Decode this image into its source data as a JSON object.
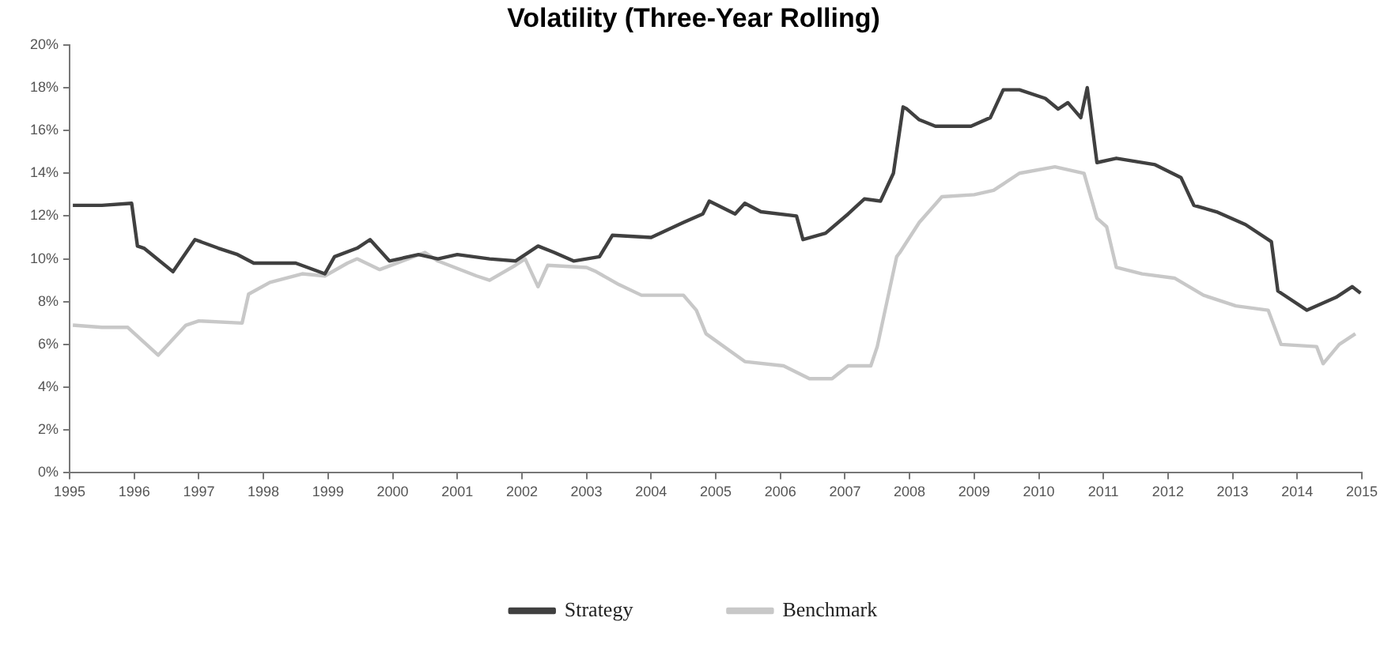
{
  "chart_data": {
    "type": "line",
    "title": "Volatility (Three-Year Rolling)",
    "xlim": [
      1995,
      2015
    ],
    "xticks": [
      1995,
      1996,
      1997,
      1998,
      1999,
      2000,
      2001,
      2002,
      2003,
      2004,
      2005,
      2006,
      2007,
      2008,
      2009,
      2010,
      2011,
      2012,
      2013,
      2014,
      2015
    ],
    "ylim": [
      0,
      20
    ],
    "yticks": [
      {
        "value": 0,
        "label": "0%"
      },
      {
        "value": 2,
        "label": "2%"
      },
      {
        "value": 4,
        "label": "4%"
      },
      {
        "value": 6,
        "label": "6%"
      },
      {
        "value": 8,
        "label": "8%"
      },
      {
        "value": 10,
        "label": "10%"
      },
      {
        "value": 12,
        "label": "12%"
      },
      {
        "value": 14,
        "label": "14%"
      },
      {
        "value": 16,
        "label": "16%"
      },
      {
        "value": 18,
        "label": "18%"
      },
      {
        "value": 20,
        "label": "20%"
      }
    ],
    "grid": false,
    "legend": "bottom",
    "marker": "none",
    "line_style": "solid",
    "series": [
      {
        "name": "Strategy",
        "color": "#404040",
        "x": [
          1995.05,
          1995.5,
          1995.96,
          1996.05,
          1996.15,
          1996.6,
          1996.94,
          1997.3,
          1997.6,
          1997.85,
          1998.5,
          1998.95,
          1999.1,
          1999.45,
          1999.65,
          1999.95,
          2000.4,
          2000.7,
          2001.0,
          2001.5,
          2001.9,
          2002.25,
          2002.5,
          2002.8,
          2003.2,
          2003.4,
          2004.0,
          2004.5,
          2004.8,
          2004.9,
          2005.3,
          2005.45,
          2005.7,
          2006.25,
          2006.35,
          2006.7,
          2007.05,
          2007.3,
          2007.55,
          2007.75,
          2007.9,
          2007.96,
          2008.15,
          2008.4,
          2008.95,
          2009.25,
          2009.45,
          2009.7,
          2010.1,
          2010.3,
          2010.45,
          2010.65,
          2010.75,
          2010.9,
          2011.2,
          2011.8,
          2012.2,
          2012.4,
          2012.75,
          2013.2,
          2013.6,
          2013.7,
          2014.15,
          2014.6,
          2014.85,
          2014.98
        ],
        "values": [
          12.5,
          12.5,
          12.6,
          10.6,
          10.5,
          9.4,
          10.9,
          10.5,
          10.2,
          9.8,
          9.8,
          9.3,
          10.1,
          10.5,
          10.9,
          9.9,
          10.2,
          10.0,
          10.2,
          10.0,
          9.9,
          10.6,
          10.3,
          9.9,
          10.1,
          11.1,
          11.0,
          11.7,
          12.1,
          12.7,
          12.1,
          12.6,
          12.2,
          12.0,
          10.9,
          11.2,
          12.1,
          12.8,
          12.7,
          14.0,
          17.1,
          17.0,
          16.5,
          16.2,
          16.2,
          16.6,
          17.9,
          17.9,
          17.5,
          17.0,
          17.3,
          16.6,
          18.0,
          14.5,
          14.7,
          14.4,
          13.8,
          12.5,
          12.2,
          11.6,
          10.8,
          8.5,
          7.6,
          8.2,
          8.7,
          8.4
        ]
      },
      {
        "name": "Benchmark",
        "color": "#c8c8c8",
        "x": [
          1995.05,
          1995.5,
          1995.9,
          1996.37,
          1996.8,
          1997.0,
          1997.67,
          1997.77,
          1998.1,
          1998.6,
          1998.95,
          1999.3,
          1999.45,
          1999.8,
          2000.5,
          2000.7,
          2001.3,
          2001.5,
          2001.9,
          2002.05,
          2002.25,
          2002.4,
          2003.0,
          2003.15,
          2003.5,
          2003.85,
          2004.5,
          2004.7,
          2004.85,
          2005.45,
          2006.05,
          2006.45,
          2006.8,
          2007.05,
          2007.4,
          2007.5,
          2007.8,
          2007.85,
          2008.15,
          2008.5,
          2009.0,
          2009.3,
          2009.7,
          2010.25,
          2010.7,
          2010.9,
          2011.05,
          2011.2,
          2011.6,
          2012.1,
          2012.55,
          2013.05,
          2013.55,
          2013.75,
          2014.3,
          2014.4,
          2014.65,
          2014.9
        ],
        "values": [
          6.9,
          6.8,
          6.8,
          5.5,
          6.9,
          7.1,
          7.0,
          8.35,
          8.9,
          9.3,
          9.2,
          9.8,
          10.0,
          9.5,
          10.3,
          9.9,
          9.2,
          9.0,
          9.7,
          10.0,
          8.7,
          9.7,
          9.6,
          9.4,
          8.8,
          8.3,
          8.3,
          7.6,
          6.5,
          5.2,
          5.0,
          4.4,
          4.4,
          5.0,
          5.0,
          5.9,
          10.1,
          10.3,
          11.7,
          12.9,
          13.0,
          13.2,
          14.0,
          14.3,
          14.0,
          11.9,
          11.5,
          9.6,
          9.3,
          9.1,
          8.3,
          7.8,
          7.6,
          6.0,
          5.9,
          5.1,
          6.0,
          6.5
        ]
      }
    ]
  }
}
